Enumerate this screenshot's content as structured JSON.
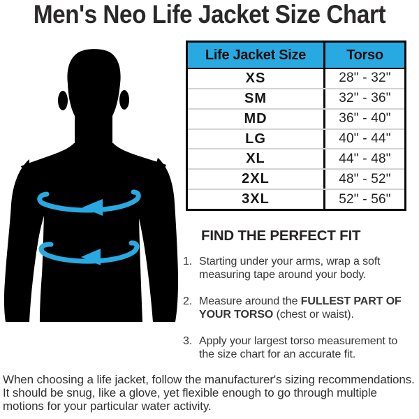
{
  "title": "Men's Neo Life Jacket Size Chart",
  "chart_data": {
    "type": "table",
    "title": "Men's Neo Life Jacket Size Chart",
    "columns": [
      "Life Jacket Size",
      "Torso"
    ],
    "rows": [
      [
        "XS",
        "28\" - 32\""
      ],
      [
        "SM",
        "32\" - 36\""
      ],
      [
        "MD",
        "36\" - 40\""
      ],
      [
        "LG",
        "40\" - 44\""
      ],
      [
        "XL",
        "44\" - 48\""
      ],
      [
        "2XL",
        "48\" - 52\""
      ],
      [
        "3XL",
        "52\" - 56\""
      ]
    ]
  },
  "fit_guide": {
    "heading": "FIND THE PERFECT FIT",
    "steps": [
      {
        "number": "1.",
        "parts": [
          {
            "text": "Starting  under your arms, wrap a soft measuring tape around your body.",
            "bold": false
          }
        ]
      },
      {
        "number": "2.",
        "parts": [
          {
            "text": "Measure around the ",
            "bold": false
          },
          {
            "text": "FULLEST PART OF YOUR TORSO",
            "bold": true
          },
          {
            "text": " (chest or waist).",
            "bold": false
          }
        ]
      },
      {
        "number": "3.",
        "parts": [
          {
            "text": "Apply your largest torso measurement to the size chart for an accurate fit.",
            "bold": false
          }
        ]
      }
    ]
  },
  "footer_note": "When choosing a life jacket, follow the manufacturer's sizing recommendations.  It should be snug, like a glove, yet flexible enough to go through multiple motions for your particular water activity.",
  "figure": {
    "silhouette": "male-torso-silhouette",
    "icons": [
      "chest-measurement-arrow-icon",
      "waist-measurement-arrow-icon"
    ]
  },
  "colors": {
    "accent_blue": "#29A9E1",
    "silhouette": "#000000",
    "text": "#333333",
    "table_border": "#0A0A0A",
    "row_divider": "#D4D4D4",
    "background": "#FFFFFF"
  }
}
